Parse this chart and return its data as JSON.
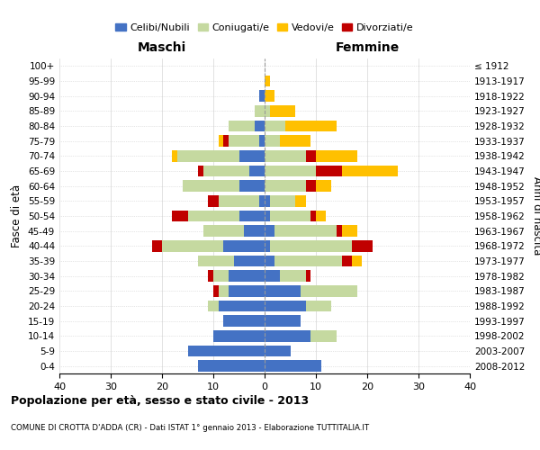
{
  "age_groups": [
    "0-4",
    "5-9",
    "10-14",
    "15-19",
    "20-24",
    "25-29",
    "30-34",
    "35-39",
    "40-44",
    "45-49",
    "50-54",
    "55-59",
    "60-64",
    "65-69",
    "70-74",
    "75-79",
    "80-84",
    "85-89",
    "90-94",
    "95-99",
    "100+"
  ],
  "birth_years": [
    "2008-2012",
    "2003-2007",
    "1998-2002",
    "1993-1997",
    "1988-1992",
    "1983-1987",
    "1978-1982",
    "1973-1977",
    "1968-1972",
    "1963-1967",
    "1958-1962",
    "1953-1957",
    "1948-1952",
    "1943-1947",
    "1938-1942",
    "1933-1937",
    "1928-1932",
    "1923-1927",
    "1918-1922",
    "1913-1917",
    "≤ 1912"
  ],
  "male": {
    "celibi": [
      13,
      15,
      10,
      8,
      9,
      7,
      7,
      6,
      8,
      4,
      5,
      1,
      5,
      3,
      5,
      1,
      2,
      0,
      1,
      0,
      0
    ],
    "coniugati": [
      0,
      0,
      0,
      0,
      2,
      2,
      3,
      7,
      12,
      8,
      10,
      8,
      11,
      9,
      12,
      6,
      5,
      2,
      0,
      0,
      0
    ],
    "vedovi": [
      0,
      0,
      0,
      0,
      0,
      0,
      0,
      0,
      0,
      0,
      0,
      0,
      0,
      0,
      1,
      1,
      0,
      0,
      0,
      0,
      0
    ],
    "divorziati": [
      0,
      0,
      0,
      0,
      0,
      1,
      1,
      0,
      2,
      0,
      3,
      2,
      0,
      1,
      0,
      1,
      0,
      0,
      0,
      0,
      0
    ]
  },
  "female": {
    "nubili": [
      11,
      5,
      9,
      7,
      8,
      7,
      3,
      2,
      1,
      2,
      1,
      1,
      0,
      0,
      0,
      0,
      0,
      0,
      0,
      0,
      0
    ],
    "coniugate": [
      0,
      0,
      5,
      0,
      5,
      11,
      5,
      13,
      16,
      12,
      8,
      5,
      8,
      10,
      8,
      3,
      4,
      1,
      0,
      0,
      0
    ],
    "vedove": [
      0,
      0,
      0,
      0,
      0,
      0,
      0,
      2,
      0,
      3,
      2,
      2,
      3,
      11,
      8,
      6,
      10,
      5,
      2,
      1,
      0
    ],
    "divorziate": [
      0,
      0,
      0,
      0,
      0,
      0,
      1,
      2,
      4,
      1,
      1,
      0,
      2,
      5,
      2,
      0,
      0,
      0,
      0,
      0,
      0
    ]
  },
  "colors": {
    "celibi": "#4472c4",
    "coniugati": "#c5d9a0",
    "vedovi": "#ffc000",
    "divorziati": "#c00000"
  },
  "xlim": 40,
  "title": "Popolazione per età, sesso e stato civile - 2013",
  "subtitle": "COMUNE DI CROTTA D'ADDA (CR) - Dati ISTAT 1° gennaio 2013 - Elaborazione TUTTITALIA.IT",
  "ylabel": "Fasce di età",
  "ylabel_right": "Anni di nascita",
  "xlabel_maschi": "Maschi",
  "xlabel_femmine": "Femmine",
  "legend_labels": [
    "Celibi/Nubili",
    "Coniugati/e",
    "Vedovi/e",
    "Divorziati/e"
  ],
  "bg_color": "#ffffff",
  "bar_height": 0.75
}
